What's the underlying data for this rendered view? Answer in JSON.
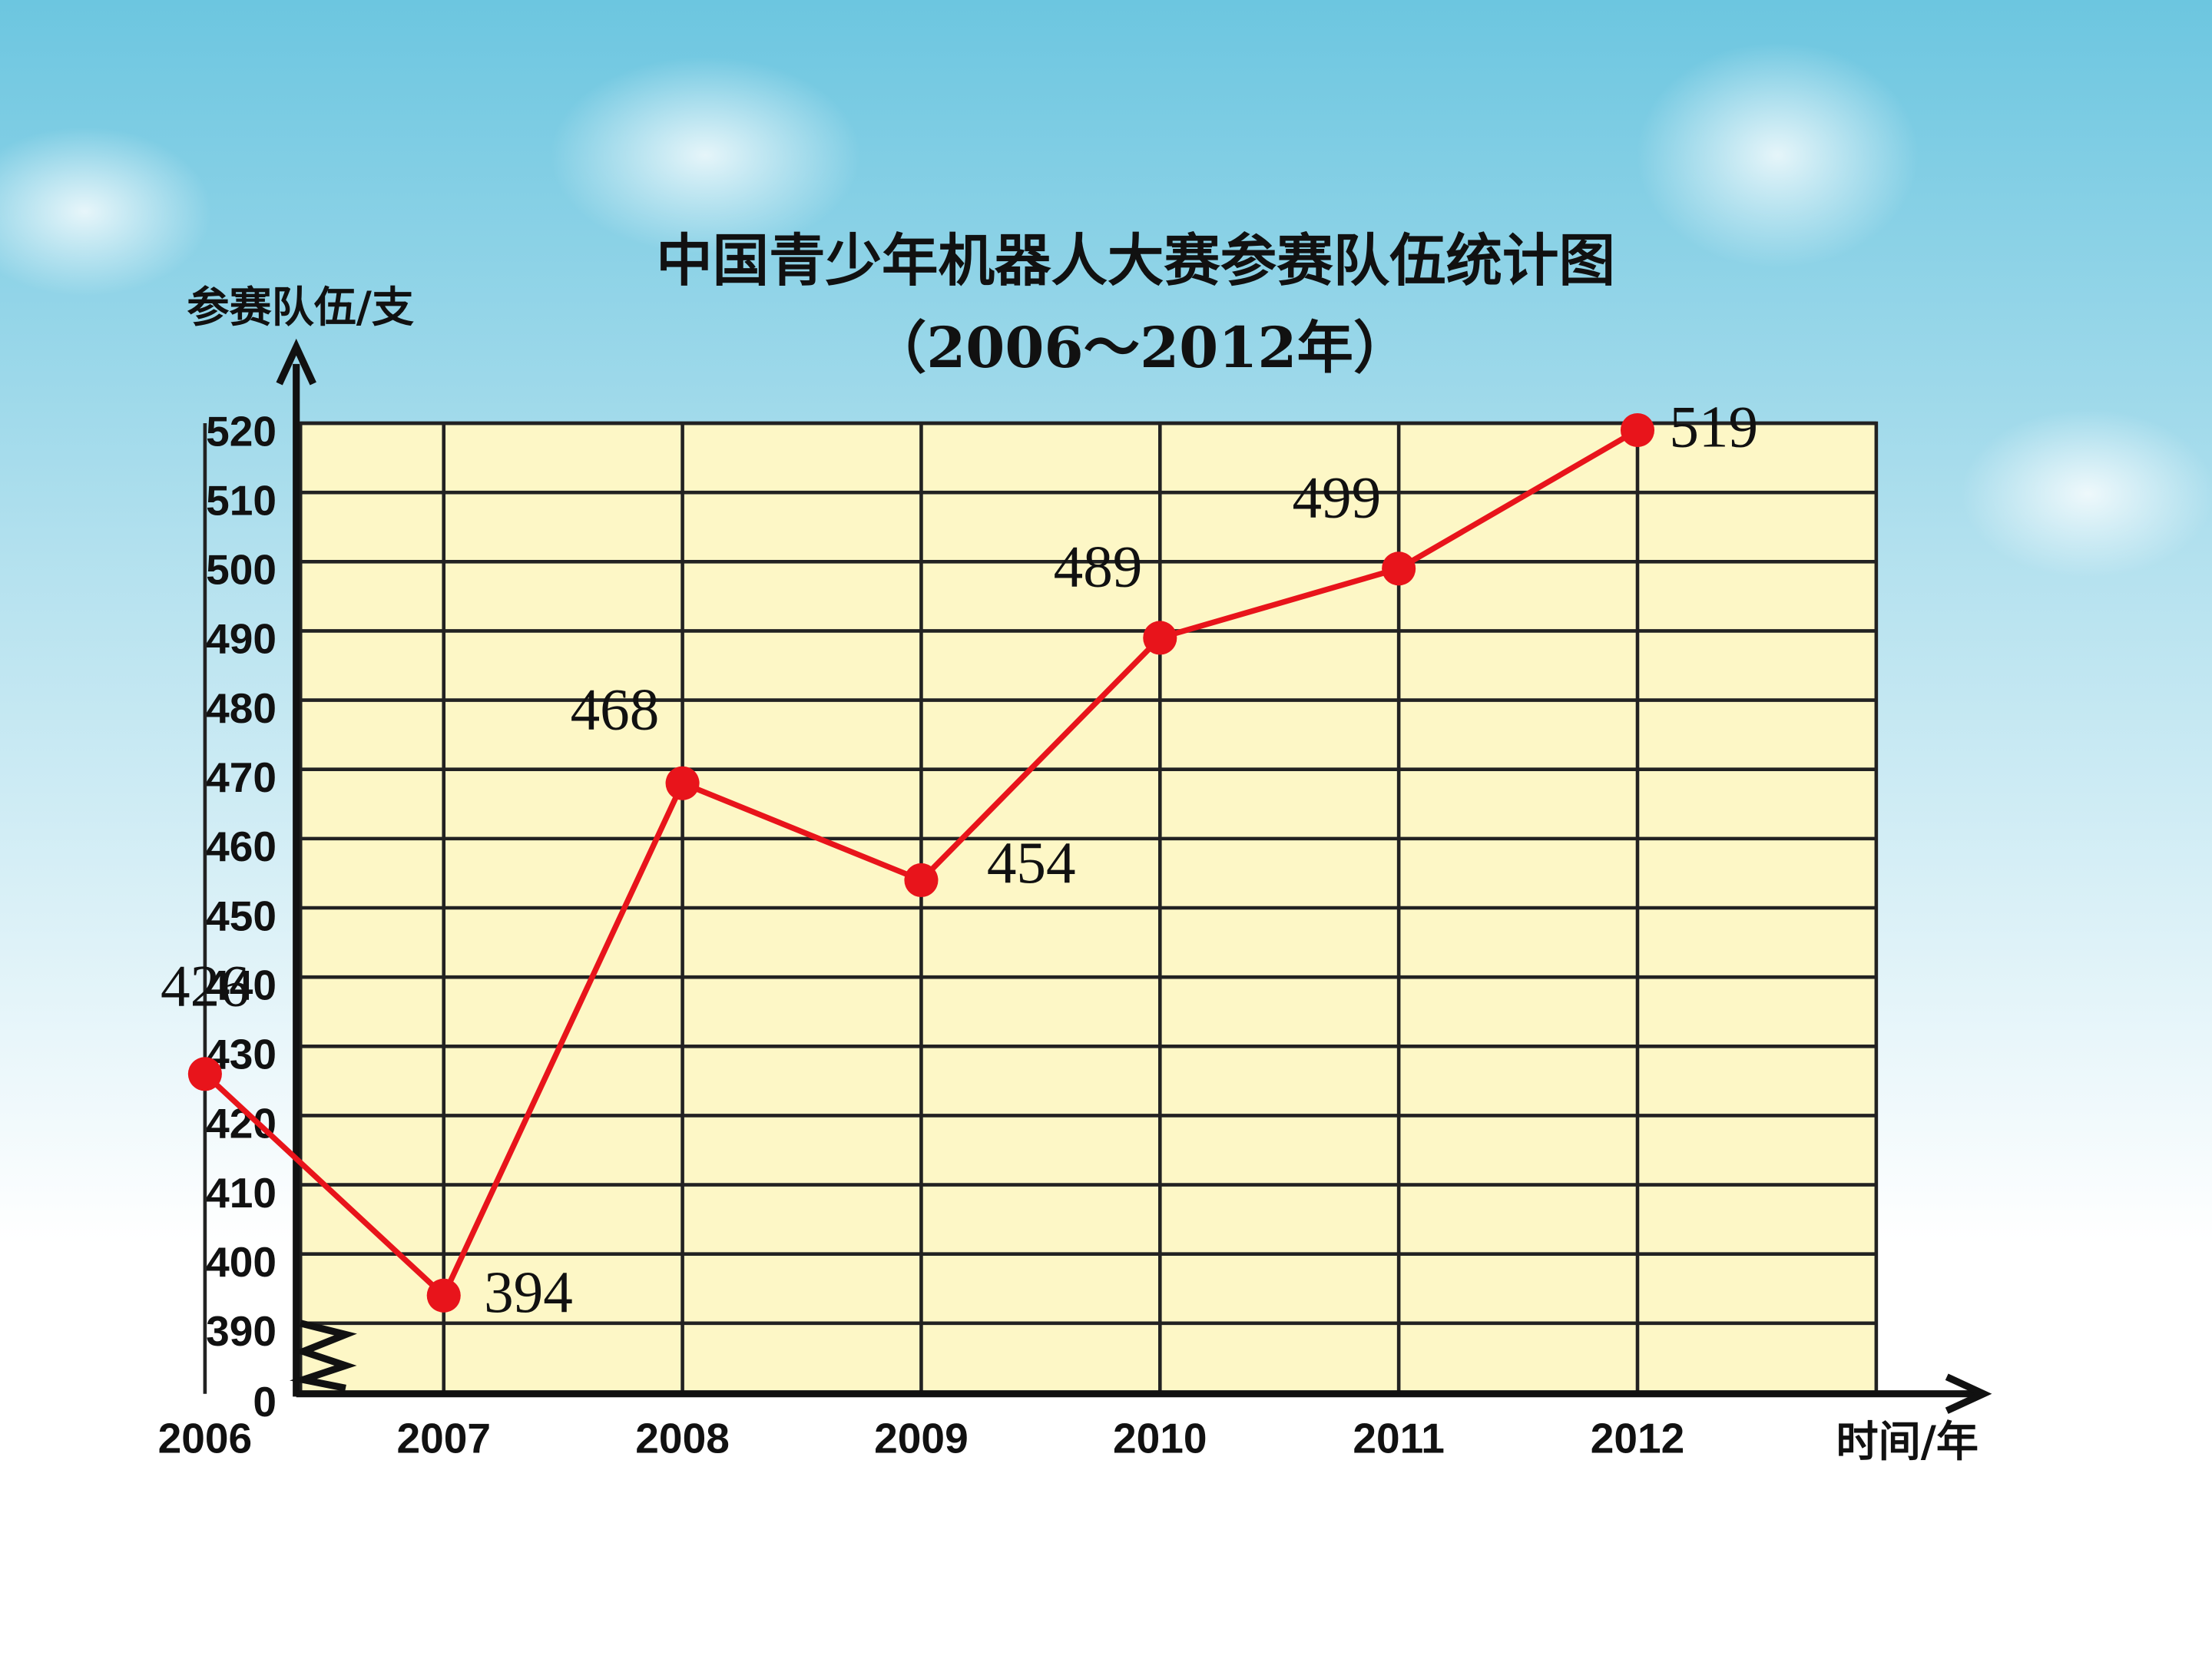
{
  "chart_data": {
    "type": "line",
    "title": "中国青少年机器人大赛参赛队伍统计图",
    "subtitle": "（2006～2012年）",
    "y_axis_label": "参赛队伍/支",
    "x_axis_label": "时间/年",
    "categories": [
      "2006",
      "2007",
      "2008",
      "2009",
      "2010",
      "2011",
      "2012"
    ],
    "series": [
      {
        "color": "#e8141b",
        "values": [
          426,
          394,
          468,
          454,
          489,
          499,
          519
        ]
      }
    ],
    "ylim": [
      0,
      520
    ],
    "axis_break": [
      0,
      390
    ],
    "yticks": [
      0,
      390,
      400,
      410,
      420,
      430,
      440,
      450,
      460,
      470,
      480,
      490,
      500,
      510,
      520
    ],
    "grid": true,
    "plot_color": "#fdf7c6"
  }
}
